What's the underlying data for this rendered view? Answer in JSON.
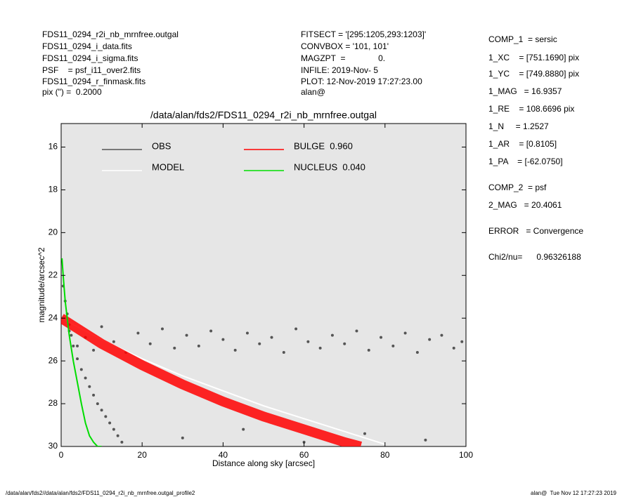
{
  "header": {
    "left": [
      "FDS11_0294_r2i_nb_mrnfree.outgal",
      "FDS11_0294_i_data.fits",
      "FDS11_0294_i_sigma.fits",
      "PSF    = psf_i11_over2.fits",
      "FDS11_0294_r_finmask.fits",
      "pix (\") =  0.2000"
    ],
    "middle": [
      "FITSECT = '[295:1205,293:1203]'",
      "CONVBOX = '101, 101'",
      "MAGZPT  =              0.",
      "INFILE: 2019-Nov- 5",
      "PLOT: 12-Nov-2019 17:27:23.00",
      "alan@"
    ]
  },
  "parameters": [
    "COMP_1  = sersic",
    "1_XC    = [751.1690] pix",
    "1_YC    = [749.8880] pix",
    "1_MAG   = 16.9357",
    "1_RE    = 108.6696 pix",
    "1_N     = 1.2527",
    "1_AR    = [0.8105]",
    "1_PA    = [-62.0750]",
    "COMP_2  = psf",
    "2_MAG   = 20.4061",
    "ERROR   = Convergence",
    "Chi2/nu=      0.96326188"
  ],
  "footer": {
    "left": "/data/alan/fds2//data/alan/fds2/FDS11_0294_r2i_nb_mrnfree.outgal_profile2",
    "right": "alan@  Tue Nov 12 17:27:23 2019"
  },
  "chart_data": {
    "type": "scatter",
    "title": "/data/alan/fds2/FDS11_0294_r2i_nb_mrnfree.outgal",
    "x_label": "Distance along sky [arcsec]",
    "y_label": "magnitude/arcsec^2",
    "xlim": [
      0,
      100
    ],
    "xticks": [
      0,
      20,
      40,
      60,
      80,
      100
    ],
    "ylim": [
      14.9,
      30
    ],
    "y_inverted": true,
    "yticks": [
      16,
      18,
      20,
      22,
      24,
      26,
      28,
      30
    ],
    "background": "#e6e6e6",
    "series": [
      {
        "name": "OBS",
        "color": "#555555",
        "style": "points",
        "x": [
          2,
          4,
          6,
          8,
          10,
          13,
          16,
          19,
          22,
          25,
          28,
          31,
          34,
          37,
          40,
          43,
          46,
          49,
          52,
          55,
          58,
          61,
          64,
          67,
          70,
          73,
          76,
          79,
          82,
          85,
          88,
          91,
          94,
          97,
          99,
          0.5,
          1,
          1.5,
          2,
          2.5,
          3,
          4,
          5,
          6,
          7,
          8,
          9,
          10,
          11,
          12,
          13,
          14,
          15,
          30,
          45,
          60,
          75,
          90
        ],
        "values": [
          24.6,
          25.3,
          24.9,
          25.5,
          24.4,
          25.1,
          25.6,
          24.7,
          25.2,
          24.5,
          25.4,
          24.8,
          25.3,
          24.6,
          25.0,
          25.5,
          24.7,
          25.2,
          24.9,
          25.6,
          24.5,
          25.1,
          25.4,
          24.8,
          25.2,
          24.6,
          25.5,
          24.9,
          25.3,
          24.7,
          25.6,
          25.0,
          24.8,
          25.4,
          25.1,
          22.5,
          23.2,
          23.8,
          24.3,
          24.8,
          25.3,
          25.9,
          26.4,
          26.8,
          27.2,
          27.6,
          28.0,
          28.3,
          28.6,
          28.9,
          29.2,
          29.5,
          29.8,
          29.6,
          29.2,
          29.8,
          29.4,
          29.7
        ]
      },
      {
        "name": "MODEL",
        "color": "#ffffff",
        "style": "line",
        "x": [
          0,
          10,
          20,
          30,
          40,
          50,
          60,
          70,
          80
        ],
        "values": [
          24.0,
          25.0,
          25.9,
          26.7,
          27.4,
          28.1,
          28.7,
          29.3,
          29.9
        ]
      },
      {
        "name": "BULGE  0.960",
        "color": "#ff0000",
        "style": "band",
        "x": [
          0,
          10,
          20,
          30,
          40,
          50,
          60,
          70,
          74
        ],
        "values": [
          24.0,
          25.2,
          26.2,
          27.1,
          27.9,
          28.6,
          29.2,
          29.8,
          30.0
        ]
      },
      {
        "name": "NUCLEUS  0.040",
        "color": "#00dd00",
        "style": "line",
        "x": [
          0.2,
          0.5,
          1,
          1.5,
          2,
          3,
          4,
          5,
          6,
          7,
          8,
          9,
          10
        ],
        "values": [
          21.2,
          22.0,
          23.2,
          24.0,
          24.8,
          26.0,
          27.0,
          28.0,
          28.9,
          29.5,
          29.8,
          30.0,
          30.0
        ]
      }
    ]
  }
}
